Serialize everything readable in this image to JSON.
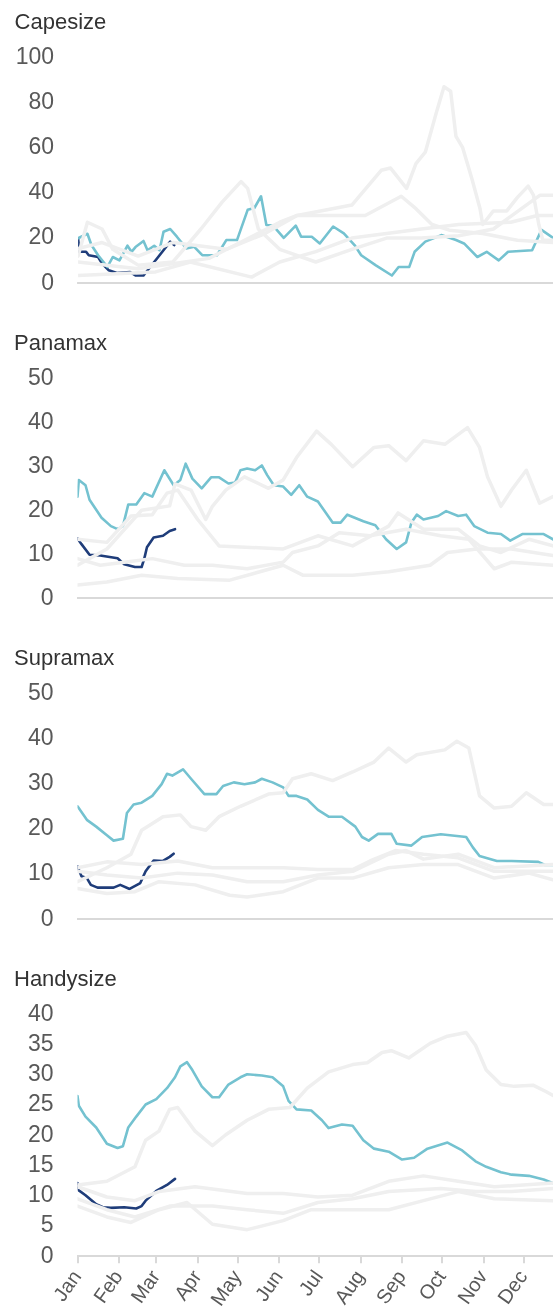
{
  "chart_data": [
    {
      "type": "line",
      "title": "Capesize",
      "xlim": [
        "--01-01",
        "--12-23"
      ],
      "ylim": [
        0,
        100
      ],
      "yticks": [
        0,
        20,
        40,
        60,
        80,
        100
      ],
      "grid": false,
      "tick_labels": "y",
      "marker": "none",
      "line_style": "solid",
      "series": [
        {
          "color": "#efefef",
          "x": [
            "--01-01",
            "--01-19",
            "--02-15",
            "--03-13",
            "--04-22",
            "--05-21",
            "--06-14",
            "--07-25",
            "--08-16",
            "--08-23",
            "--09-04",
            "--09-11",
            "--09-18",
            "--09-26",
            "--10-02",
            "--10-07",
            "--10-11",
            "--10-16",
            "--10-23",
            "--10-29",
            "--10-31",
            "--11-08",
            "--11-18",
            "--11-26",
            "--12-04",
            "--12-08",
            "--12-12",
            "--12-15",
            "--12-23"
          ],
          "values": [
            15.4,
            18,
            12,
            18,
            15,
            22,
            30,
            34.6,
            50,
            51,
            42,
            53,
            58,
            75,
            87,
            85,
            65,
            60,
            46,
            33,
            26,
            32,
            32,
            38,
            43,
            39,
            26,
            19,
            19
          ]
        },
        {
          "color": "#efefef",
          "x": [
            "--01-01",
            "--01-08",
            "--01-19",
            "--01-27",
            "--02-15",
            "--03-13",
            "--04-03",
            "--04-19",
            "--05-03",
            "--05-08",
            "--05-16",
            "--06-01",
            "--06-28",
            "--07-25",
            "--08-20",
            "--09-15",
            "--10-13",
            "--11-08",
            "--11-29",
            "--12-13",
            "--12-23"
          ],
          "values": [
            12,
            27,
            24,
            15,
            8,
            9.4,
            24,
            36,
            45,
            42,
            24,
            15,
            9.4,
            15,
            20,
            20,
            21,
            24,
            33,
            39,
            39
          ]
        },
        {
          "color": "#efefef",
          "x": [
            "--01-01",
            "--02-15",
            "--04-09",
            "--06-01",
            "--06-14",
            "--08-04",
            "--08-31",
            "--09-11",
            "--09-23",
            "--10-06",
            "--10-31",
            "--11-26",
            "--12-23"
          ],
          "values": [
            9.4,
            6.4,
            11,
            27,
            30,
            30,
            38.5,
            33,
            26,
            23.5,
            22,
            19,
            18
          ]
        },
        {
          "color": "#efefef",
          "x": [
            "--01-01",
            "--02-28",
            "--03-26",
            "--05-11",
            "--06-01",
            "--06-28",
            "--07-25",
            "--09-15",
            "--10-13",
            "--11-21",
            "--12-11",
            "--12-23"
          ],
          "values": [
            3.4,
            5,
            9.4,
            2.7,
            9.4,
            14,
            20,
            24,
            26,
            27,
            30,
            30
          ]
        },
        {
          "color": "#74c2d0",
          "x": [
            "--01-01",
            "--01-08",
            "--01-11",
            "--01-16",
            "--01-23",
            "--01-27",
            "--02-01",
            "--02-07",
            "--02-10",
            "--02-13",
            "--02-19",
            "--02-22",
            "--02-27",
            "--03-03",
            "--03-06",
            "--03-11",
            "--03-16",
            "--03-23",
            "--03-29",
            "--04-04",
            "--04-15",
            "--04-22",
            "--04-30",
            "--05-08",
            "--05-13",
            "--05-18",
            "--05-22",
            "--05-27",
            "--06-04",
            "--06-13",
            "--06-17",
            "--06-25",
            "--07-01",
            "--07-11",
            "--07-19",
            "--07-27",
            "--08-01",
            "--08-12",
            "--08-24",
            "--08-29",
            "--09-06",
            "--09-10",
            "--09-18",
            "--09-30",
            "--10-11",
            "--10-17",
            "--10-27",
            "--11-03",
            "--11-12",
            "--11-19",
            "--12-07",
            "--12-14",
            "--12-23"
          ],
          "values": [
            19.9,
            21.9,
            16.9,
            12.4,
            7.2,
            11.6,
            10.1,
            16.6,
            13.9,
            16,
            18.7,
            14.6,
            16.6,
            14.6,
            22.8,
            24,
            20.6,
            15.4,
            16.1,
            12.4,
            12.4,
            19.1,
            19.1,
            32.5,
            33.3,
            38.5,
            25.8,
            25.5,
            20.1,
            25.5,
            20.6,
            20.6,
            17.6,
            25.1,
            22.1,
            16.9,
            12.4,
            7.9,
            3.4,
            7.2,
            7.2,
            13.9,
            18.4,
            21.3,
            19.1,
            17.6,
            11.6,
            13.9,
            10.1,
            13.9,
            14.6,
            23.6,
            19.9
          ]
        },
        {
          "color": "#1f3d7a",
          "x": [
            "--01-01",
            "--01-02",
            "--01-07",
            "--01-09",
            "--01-16",
            "--01-19",
            "--01-24",
            "--01-30",
            "--02-09",
            "--02-13",
            "--02-19",
            "--02-24",
            "--03-02",
            "--03-07",
            "--03-11",
            "--03-14"
          ],
          "values": [
            19.9,
            13.9,
            13.9,
            12.4,
            11.6,
            8.7,
            5.7,
            4.5,
            4.9,
            3.4,
            3.4,
            7.2,
            11.6,
            15.4,
            18.4,
            16.9
          ]
        }
      ]
    },
    {
      "type": "line",
      "title": "Panamax",
      "xlim": [
        "--01-01",
        "--12-23"
      ],
      "ylim": [
        0,
        50
      ],
      "yticks": [
        0,
        10,
        20,
        30,
        40,
        50
      ],
      "grid": false,
      "tick_labels": "y",
      "marker": "none",
      "line_style": "solid",
      "series": [
        {
          "color": "#efefef",
          "x": [
            "--01-01",
            "--01-23",
            "--02-18",
            "--03-11",
            "--03-15",
            "--03-27",
            "--04-07",
            "--04-12",
            "--04-22",
            "--05-06",
            "--05-24",
            "--06-04",
            "--06-14",
            "--06-29",
            "--07-10",
            "--07-26",
            "--08-11",
            "--08-22",
            "--09-04",
            "--09-17",
            "--10-03",
            "--10-20",
            "--10-29",
            "--11-04",
            "--11-14",
            "--11-22",
            "--12-03",
            "--12-13",
            "--12-23"
          ],
          "values": [
            7.5,
            11.2,
            20,
            21,
            26,
            24.6,
            17.9,
            20.9,
            24.6,
            27.6,
            25,
            26.9,
            32,
            38,
            35,
            29.9,
            34.3,
            34.7,
            31.3,
            35.8,
            35,
            38.8,
            34.3,
            27.6,
            20.9,
            24.6,
            29.1,
            21.6,
            23.1
          ]
        },
        {
          "color": "#efefef",
          "x": [
            "--01-01",
            "--01-23",
            "--02-10",
            "--02-26",
            "--03-09",
            "--03-17",
            "--04-01",
            "--04-17",
            "--06-04",
            "--06-30",
            "--07-26",
            "--08-22",
            "--08-29",
            "--09-17",
            "--10-13",
            "--10-29",
            "--11-14",
            "--12-05",
            "--12-23"
          ],
          "values": [
            13.4,
            12.7,
            18.7,
            19,
            23.9,
            24.6,
            17.9,
            11.9,
            11.2,
            14.2,
            11.9,
            16.4,
            19.4,
            15.7,
            15.7,
            11.9,
            10.4,
            13.4,
            11.9
          ]
        },
        {
          "color": "#efefef",
          "x": [
            "--01-01",
            "--01-18",
            "--02-05",
            "--02-26",
            "--03-22",
            "--04-12",
            "--05-08",
            "--06-04",
            "--06-11",
            "--06-30",
            "--07-16",
            "--08-08",
            "--09-04",
            "--09-30",
            "--10-21",
            "--11-09",
            "--11-22",
            "--12-23"
          ],
          "values": [
            9,
            7.5,
            8.2,
            9,
            7.5,
            7.5,
            6.7,
            8.2,
            10.4,
            11.9,
            14.9,
            14.2,
            15.7,
            14.2,
            13.4,
            6.7,
            8.2,
            7.5
          ]
        },
        {
          "color": "#efefef",
          "x": [
            "--01-01",
            "--01-23",
            "--02-18",
            "--03-17",
            "--04-25",
            "--06-04",
            "--06-19",
            "--07-26",
            "--08-22",
            "--09-22",
            "--10-05",
            "--10-27",
            "--11-22",
            "--12-23"
          ],
          "values": [
            3,
            3.7,
            5.2,
            4.5,
            4.1,
            7.5,
            5.2,
            5.2,
            6,
            7.5,
            10.4,
            11.2,
            11.2,
            9.7
          ]
        },
        {
          "color": "#74c2d0",
          "x": [
            "--01-01",
            "--01-02",
            "--01-07",
            "--01-10",
            "--01-15",
            "--01-19",
            "--01-26",
            "--01-31",
            "--02-04",
            "--02-08",
            "--02-14",
            "--02-20",
            "--02-26",
            "--03-07",
            "--03-14",
            "--03-19",
            "--03-23",
            "--03-28",
            "--04-04",
            "--04-11",
            "--04-17",
            "--04-24",
            "--04-29",
            "--05-03",
            "--05-08",
            "--05-14",
            "--05-19",
            "--05-23",
            "--05-28",
            "--06-04",
            "--06-10",
            "--06-16",
            "--06-22",
            "--06-30",
            "--07-11",
            "--07-17",
            "--07-22",
            "--08-03",
            "--08-12",
            "--08-20",
            "--08-28",
            "--09-04",
            "--09-08",
            "--09-12",
            "--09-17",
            "--09-28",
            "--10-04",
            "--10-13",
            "--10-19",
            "--10-25",
            "--11-04",
            "--11-14",
            "--11-21",
            "--11-30",
            "--12-16",
            "--12-23"
          ],
          "values": [
            23.1,
            26.9,
            25.7,
            22.4,
            20.1,
            18.3,
            16.4,
            15.7,
            16.4,
            21.3,
            21.3,
            23.9,
            23.1,
            29.1,
            25.7,
            26.9,
            30.6,
            27.2,
            25,
            27.5,
            27.5,
            26.1,
            26.3,
            29.1,
            29.5,
            29.1,
            30.2,
            28,
            25.7,
            25.4,
            23.5,
            25.7,
            23.1,
            22,
            17.2,
            17.2,
            19,
            17.5,
            16.6,
            13.4,
            11.2,
            12.7,
            17.2,
            19,
            17.9,
            18.7,
            19.8,
            18.7,
            19,
            16.4,
            14.9,
            14.6,
            13.1,
            14.6,
            14.6,
            13.4
          ]
        },
        {
          "color": "#1f3d7a",
          "x": [
            "--01-01",
            "--01-04",
            "--01-10",
            "--01-18",
            "--01-31",
            "--02-05",
            "--02-13",
            "--02-18",
            "--02-20",
            "--02-22",
            "--02-27",
            "--03-06",
            "--03-11",
            "--03-15"
          ],
          "values": [
            13.6,
            12.3,
            9.9,
            9.7,
            9.1,
            7.7,
            7.1,
            7.1,
            9,
            11.6,
            13.8,
            14.2,
            15.3,
            15.7
          ]
        }
      ]
    },
    {
      "type": "line",
      "title": "Supramax",
      "xlim": [
        "--01-01",
        "--12-23"
      ],
      "ylim": [
        0,
        50
      ],
      "yticks": [
        0,
        10,
        20,
        30,
        40,
        50
      ],
      "grid": false,
      "tick_labels": "y",
      "marker": "none",
      "line_style": "solid",
      "series": [
        {
          "color": "#efefef",
          "x": [
            "--01-01",
            "--01-23",
            "--02-10",
            "--02-18",
            "--02-24",
            "--03-06",
            "--03-19",
            "--03-27",
            "--04-07",
            "--04-17",
            "--05-03",
            "--05-24",
            "--06-04",
            "--06-11",
            "--06-25",
            "--07-11",
            "--07-26",
            "--08-11",
            "--08-22",
            "--09-04",
            "--09-12",
            "--10-03",
            "--10-12",
            "--10-21",
            "--10-29",
            "--11-09",
            "--11-22",
            "--12-03",
            "--12-16",
            "--12-23"
          ],
          "values": [
            8.3,
            11.4,
            14.4,
            19.7,
            20.8,
            22.7,
            23.1,
            20.5,
            19.7,
            22.7,
            25,
            27.7,
            28,
            31.1,
            32.2,
            30.7,
            32.6,
            34.8,
            37.9,
            34.8,
            36.4,
            37.5,
            39.4,
            37.9,
            27.3,
            24.6,
            25,
            28,
            25.4,
            25.4
          ]
        },
        {
          "color": "#efefef",
          "x": [
            "--01-01",
            "--01-23",
            "--02-18",
            "--03-17",
            "--04-12",
            "--06-04",
            "--06-30",
            "--07-26",
            "--08-08",
            "--08-27",
            "--09-17",
            "--10-13",
            "--11-09",
            "--12-23"
          ],
          "values": [
            11.4,
            12.7,
            12.1,
            12.9,
            11.4,
            11.4,
            11,
            11,
            12.9,
            15.2,
            14.4,
            13.6,
            10.6,
            10.6
          ]
        },
        {
          "color": "#efefef",
          "x": [
            "--01-01",
            "--01-23",
            "--02-13",
            "--03-03",
            "--03-30",
            "--04-25",
            "--05-08",
            "--06-04",
            "--06-30",
            "--07-26",
            "--08-22",
            "--09-17",
            "--10-13",
            "--11-09",
            "--12-05",
            "--12-23"
          ],
          "values": [
            6.8,
            5.7,
            6.1,
            8.3,
            7.6,
            5.3,
            4.9,
            6.1,
            9.1,
            9.1,
            11.4,
            12.1,
            12.1,
            9.1,
            10.2,
            8.7
          ]
        },
        {
          "color": "#efefef",
          "x": [
            "--01-01",
            "--01-23",
            "--02-18",
            "--03-17",
            "--04-12",
            "--05-08",
            "--06-04",
            "--06-30",
            "--07-26",
            "--08-22",
            "--09-04",
            "--09-17",
            "--10-13",
            "--11-09",
            "--12-23"
          ],
          "values": [
            10.6,
            9.8,
            9.1,
            10.2,
            9.8,
            8.3,
            8.3,
            9.8,
            10.6,
            14.4,
            15.2,
            13.3,
            14.4,
            11.4,
            12.1
          ]
        },
        {
          "color": "#74c2d0",
          "x": [
            "--01-01",
            "--01-08",
            "--01-15",
            "--01-23",
            "--01-28",
            "--02-04",
            "--02-07",
            "--02-12",
            "--02-18",
            "--02-26",
            "--03-05",
            "--03-09",
            "--03-13",
            "--03-21",
            "--03-27",
            "--04-06",
            "--04-15",
            "--04-20",
            "--04-28",
            "--05-06",
            "--05-14",
            "--05-19",
            "--05-27",
            "--06-04",
            "--06-08",
            "--06-14",
            "--06-22",
            "--06-30",
            "--07-08",
            "--07-18",
            "--07-28",
            "--08-02",
            "--08-07",
            "--08-14",
            "--08-24",
            "--08-28",
            "--09-08",
            "--09-16",
            "--09-30",
            "--10-19",
            "--10-24",
            "--10-29",
            "--11-11",
            "--11-22",
            "--12-12",
            "--12-17",
            "--12-23"
          ],
          "values": [
            25,
            22,
            20.5,
            18.6,
            17.4,
            17.8,
            23.5,
            25.4,
            25.8,
            27.3,
            29.9,
            32.2,
            31.8,
            33.2,
            31.1,
            27.7,
            27.7,
            29.5,
            30.3,
            29.9,
            30.3,
            31.1,
            30.3,
            29.2,
            27.3,
            27.3,
            26.5,
            24.2,
            22.7,
            22.7,
            20.5,
            18.2,
            17.4,
            18.9,
            18.9,
            16.7,
            16.3,
            18.2,
            18.8,
            18.2,
            15.9,
            14,
            12.9,
            12.9,
            12.7,
            12,
            12
          ]
        },
        {
          "color": "#1f3d7a",
          "x": [
            "--01-01",
            "--01-04",
            "--01-08",
            "--01-11",
            "--01-16",
            "--01-28",
            "--02-02",
            "--02-09",
            "--02-17",
            "--02-21",
            "--02-27",
            "--03-06",
            "--03-11",
            "--03-14"
          ],
          "values": [
            11.7,
            9.5,
            9.1,
            7.6,
            7,
            7,
            7.6,
            6.7,
            8,
            10.6,
            13,
            12.9,
            13.8,
            14.5
          ]
        }
      ]
    },
    {
      "type": "line",
      "title": "Handysize",
      "xlim": [
        "--01-01",
        "--12-23"
      ],
      "xticks": [
        {
          "value": "--01-01",
          "label": "Jan"
        },
        {
          "value": "--02-01",
          "label": "Feb"
        },
        {
          "value": "--03-01",
          "label": "Mar"
        },
        {
          "value": "--04-01",
          "label": "Apr"
        },
        {
          "value": "--05-01",
          "label": "May"
        },
        {
          "value": "--06-01",
          "label": "Jun"
        },
        {
          "value": "--07-01",
          "label": "Jul"
        },
        {
          "value": "--08-01",
          "label": "Aug"
        },
        {
          "value": "--09-01",
          "label": "Sep"
        },
        {
          "value": "--10-01",
          "label": "Oct"
        },
        {
          "value": "--11-01",
          "label": "Nov"
        },
        {
          "value": "--12-01",
          "label": "Dec"
        }
      ],
      "ylim": [
        0,
        40
      ],
      "yticks": [
        0,
        5,
        10,
        15,
        20,
        25,
        30,
        35,
        40
      ],
      "grid": false,
      "marker": "none",
      "line_style": "solid",
      "series": [
        {
          "color": "#efefef",
          "x": [
            "--01-01",
            "--01-23",
            "--02-13",
            "--02-21",
            "--03-03",
            "--03-11",
            "--03-17",
            "--03-30",
            "--04-12",
            "--04-22",
            "--05-08",
            "--05-24",
            "--06-09",
            "--06-22",
            "--07-08",
            "--07-26",
            "--08-06",
            "--08-17",
            "--08-24",
            "--09-06",
            "--09-22",
            "--10-05",
            "--10-19",
            "--10-26",
            "--11-03",
            "--11-14",
            "--11-24",
            "--12-08",
            "--12-18",
            "--12-23"
          ],
          "values": [
            11.8,
            12.4,
            14.8,
            19.2,
            20.7,
            24.3,
            24.6,
            20.7,
            18.3,
            20.1,
            22.5,
            24.3,
            24.6,
            27.8,
            30.5,
            31.7,
            32,
            33.7,
            34,
            32.8,
            35.2,
            36.4,
            37,
            34.9,
            30.8,
            28.4,
            28.1,
            28.3,
            27.2,
            26.6
          ]
        },
        {
          "color": "#efefef",
          "x": [
            "--01-01",
            "--01-23",
            "--02-13",
            "--03-03",
            "--03-30",
            "--05-08",
            "--06-04",
            "--06-30",
            "--07-26",
            "--08-22",
            "--09-17",
            "--10-13",
            "--11-09",
            "--12-23"
          ],
          "values": [
            11.5,
            9.8,
            9.2,
            10.7,
            11.5,
            10.4,
            10.4,
            9.8,
            10.1,
            12.4,
            13.3,
            12.4,
            11.5,
            12.1
          ]
        },
        {
          "color": "#efefef",
          "x": [
            "--01-01",
            "--01-23",
            "--02-10",
            "--03-03",
            "--03-24",
            "--04-12",
            "--05-08",
            "--06-04",
            "--06-25",
            "--07-26",
            "--08-22",
            "--09-17",
            "--10-13",
            "--11-09",
            "--12-23"
          ],
          "values": [
            8.3,
            6.5,
            5.6,
            7.7,
            8.9,
            5.3,
            4.4,
            5.9,
            7.7,
            7.7,
            7.7,
            9.2,
            10.7,
            9.5,
            9.2
          ]
        },
        {
          "color": "#efefef",
          "x": [
            "--01-01",
            "--01-23",
            "--02-13",
            "--03-11",
            "--04-12",
            "--05-08",
            "--06-04",
            "--06-30",
            "--07-26",
            "--08-22",
            "--09-30",
            "--10-26",
            "--11-22",
            "--12-23"
          ],
          "values": [
            9.5,
            7.7,
            6.5,
            8.3,
            8.3,
            7.7,
            7.1,
            8.9,
            9.5,
            10.7,
            11.2,
            10.7,
            10.7,
            11.2
          ]
        },
        {
          "color": "#74c2d0",
          "x": [
            "--01-01",
            "--01-02",
            "--01-07",
            "--01-15",
            "--01-23",
            "--01-31",
            "--02-04",
            "--02-08",
            "--02-14",
            "--02-21",
            "--03-01",
            "--03-09",
            "--03-15",
            "--03-19",
            "--03-24",
            "--03-28",
            "--04-04",
            "--04-12",
            "--04-17",
            "--04-24",
            "--05-03",
            "--05-08",
            "--05-19",
            "--05-27",
            "--06-04",
            "--06-08",
            "--06-14",
            "--06-25",
            "--07-03",
            "--07-08",
            "--07-18",
            "--07-26",
            "--08-03",
            "--08-11",
            "--08-22",
            "--09-01",
            "--09-10",
            "--09-20",
            "--10-05",
            "--10-16",
            "--10-26",
            "--11-03",
            "--11-14",
            "--11-22",
            "--12-05",
            "--12-16",
            "--12-23"
          ],
          "values": [
            26.5,
            24.9,
            23.1,
            21.3,
            18.6,
            17.9,
            18.2,
            21.3,
            23.1,
            25.1,
            26,
            27.8,
            29.6,
            31.4,
            32.1,
            30.8,
            28.1,
            26.3,
            26.3,
            28.4,
            29.6,
            30.1,
            29.9,
            29.6,
            28.1,
            25.7,
            24.3,
            24.1,
            22.5,
            21.2,
            21.8,
            21.6,
            19.2,
            17.8,
            17.3,
            16,
            16.3,
            17.8,
            18.8,
            17.5,
            15.7,
            14.8,
            13.9,
            13.5,
            13.3,
            12.7,
            12.1
          ]
        },
        {
          "color": "#1f3d7a",
          "x": [
            "--01-01",
            "--01-02",
            "--01-07",
            "--01-15",
            "--01-20",
            "--01-26",
            "--02-05",
            "--02-14",
            "--02-18",
            "--02-21",
            "--03-01",
            "--03-09",
            "--03-15"
          ],
          "values": [
            12.1,
            10.9,
            10.1,
            8.6,
            8.1,
            8,
            8.1,
            7.9,
            8.3,
            9.2,
            10.8,
            11.8,
            12.8
          ]
        }
      ]
    }
  ]
}
